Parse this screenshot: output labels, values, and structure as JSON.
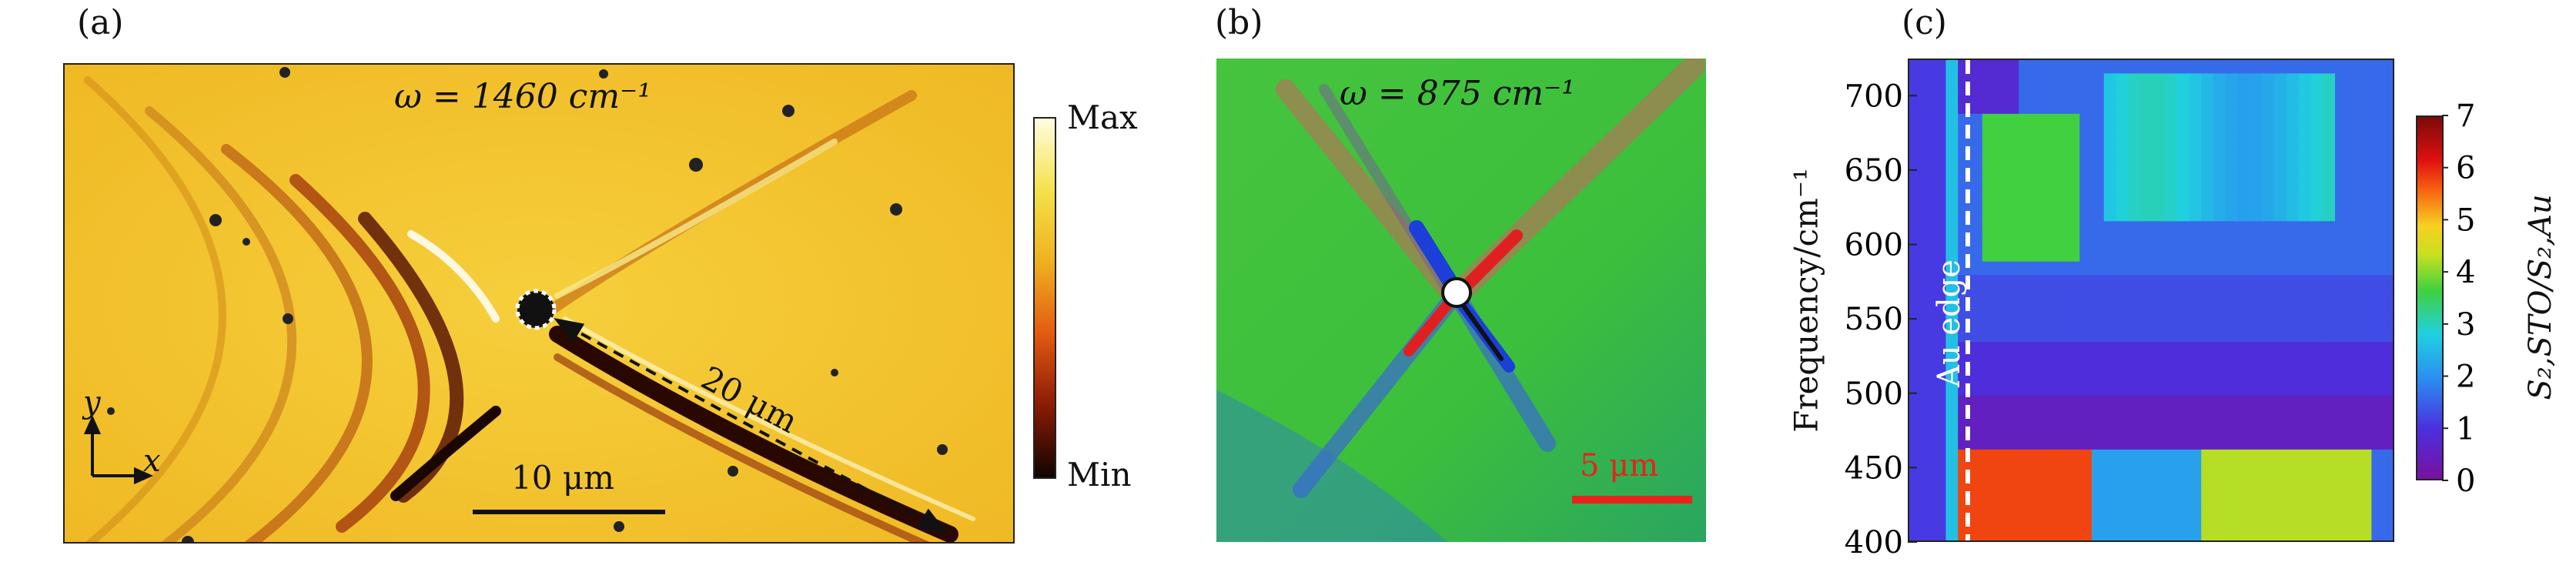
{
  "panels": {
    "a": {
      "label": "(a)",
      "omega_text": "ω = 1460 cm⁻¹",
      "distance_label": "20 μm",
      "scalebar_label": "10 μm",
      "axis_y": "y",
      "axis_x": "x",
      "colorbar_max": "Max",
      "colorbar_min": "Min"
    },
    "b": {
      "label": "(b)",
      "omega_text": "ω = 875 cm⁻¹",
      "scalebar_label": "5 μm"
    },
    "c": {
      "label": "(c)",
      "edge_label": "Au edge",
      "ylabel": "Frequency/cm⁻¹",
      "colorbar_label": "S₂,STO/S₂,Au"
    }
  },
  "chart_data": {
    "type": "heatmap",
    "ylabel": "Frequency/cm⁻¹",
    "ylim": [
      400,
      725
    ],
    "yticks": [
      400,
      450,
      500,
      550,
      600,
      650,
      700
    ],
    "colorbar": {
      "label": "S₂,STO/S₂,Au",
      "range": [
        0,
        7
      ],
      "ticks": [
        0,
        1,
        2,
        3,
        4,
        5,
        6,
        7
      ]
    }
  },
  "colors": {
    "panel_a_background": "#f3c22c",
    "panel_b_background": "#39c039",
    "scalebar_b": "#e8231c"
  }
}
